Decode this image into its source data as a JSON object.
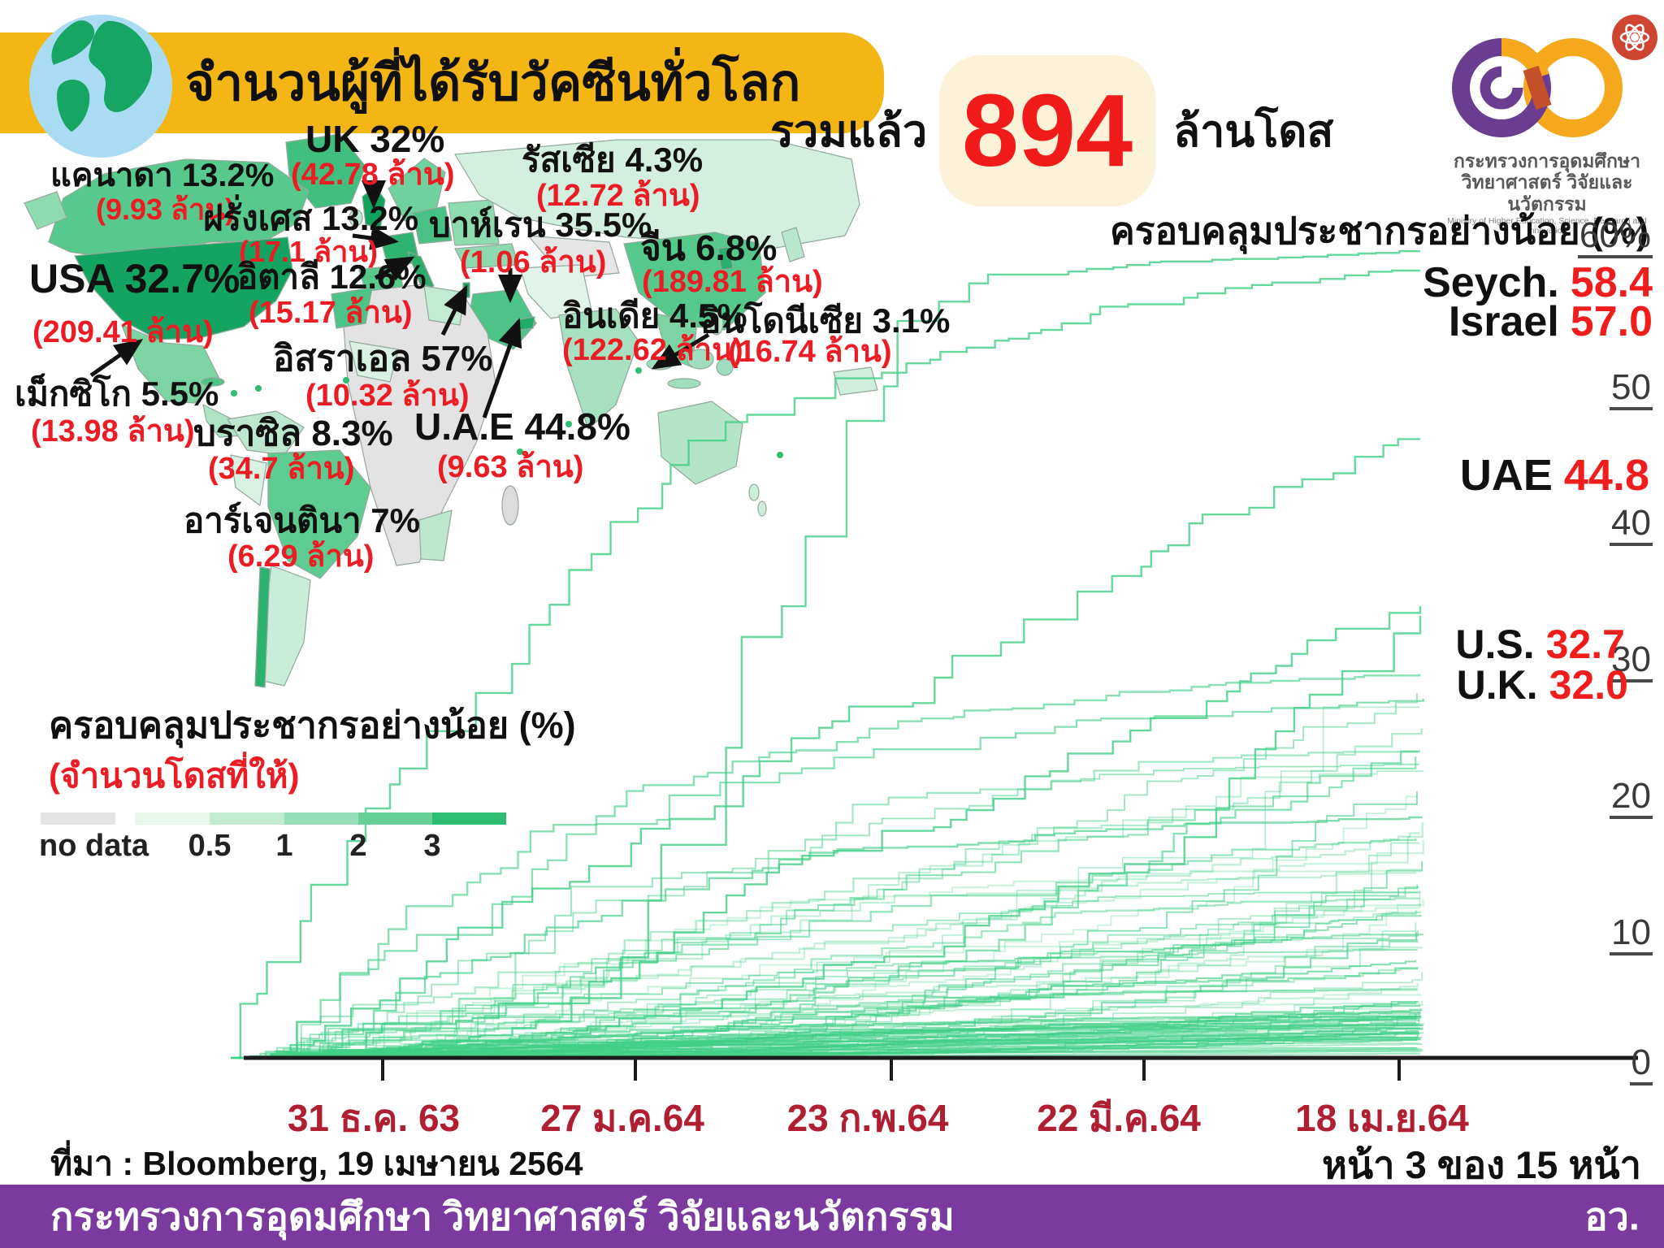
{
  "header": {
    "title": "จำนวนผู้ที่ได้รับวัคซีนทั่วโลก",
    "total_prefix": "รวมแล้ว",
    "total_value": "894",
    "total_unit": "ล้านโดส"
  },
  "logo": {
    "thai_line1": "กระทรวงการอุดมศึกษา",
    "thai_line2": "วิทยาศาสตร์ วิจัยและนวัตกรรม",
    "eng_line": "Ministry of Higher Education, Science, Research and Innovation"
  },
  "map_labels": [
    {
      "country": "แคนาดา",
      "pct": "13.2%",
      "doses": "(9.93 ล้าน)"
    },
    {
      "country": "UK",
      "pct": "32%",
      "doses": "(42.78 ล้าน)"
    },
    {
      "country": "รัสเซีย",
      "pct": "4.3%",
      "doses": "(12.72 ล้าน)"
    },
    {
      "country": "ฝรั่งเศส",
      "pct": "13.2%",
      "doses": "(17.1 ล้าน)"
    },
    {
      "country": "USA",
      "pct": "32.7%",
      "doses": "(209.41 ล้าน)"
    },
    {
      "country": "อิตาลี",
      "pct": "12.6%",
      "doses": "(15.17 ล้าน)"
    },
    {
      "country": "บาห์เรน",
      "pct": "35.5%",
      "doses": "(1.06 ล้าน)"
    },
    {
      "country": "จีน",
      "pct": "6.8%",
      "doses": "(189.81 ล้าน)"
    },
    {
      "country": "อินเดีย",
      "pct": "4.5%",
      "doses": "(122.62 ล้าน)"
    },
    {
      "country": "อินโดนีเซีย",
      "pct": "3.1%",
      "doses": "(16.74 ล้าน)"
    },
    {
      "country": "เม็กซิโก",
      "pct": "5.5%",
      "doses": "(13.98 ล้าน)"
    },
    {
      "country": "อิสราเอล",
      "pct": "57%",
      "doses": "(10.32 ล้าน)"
    },
    {
      "country": "U.A.E",
      "pct": "44.8%",
      "doses": "(9.63 ล้าน)"
    },
    {
      "country": "บราซิล",
      "pct": "8.3%",
      "doses": "(34.7 ล้าน)"
    },
    {
      "country": "อาร์เจนตินา",
      "pct": "7%",
      "doses": "(6.29 ล้าน)"
    }
  ],
  "map_legend": {
    "title": "ครอบคลุมประชากรอย่างน้อย (%)",
    "subtitle": "(จำนวนโดสที่ให้)",
    "no_data_label": "no data",
    "tick_labels": [
      "0.5",
      "1",
      "2",
      "3"
    ],
    "bin_colors": [
      "#E4E4E4",
      "#E8F6EC",
      "#C2EBD1",
      "#97DFB6",
      "#66D096",
      "#2DBE71"
    ]
  },
  "chart": {
    "header": "ครอบคลุมประชากรอย่างน้อย (%)",
    "y_tick_labels": [
      "60%",
      "50",
      "40",
      "30",
      "20",
      "10",
      "0"
    ],
    "x_tick_labels": [
      "31 ธ.ค. 63",
      "27 ม.ค.64",
      "23 ก.พ.64",
      "22 มี.ค.64",
      "18 เม.ย.64"
    ],
    "annotations": [
      {
        "name": "Seych.",
        "value": "58.4"
      },
      {
        "name": "Israel",
        "value": "57.0"
      },
      {
        "name": "UAE",
        "value": "44.8"
      },
      {
        "name": "U.S.",
        "value": "32.7"
      },
      {
        "name": "U.K.",
        "value": "32.0"
      }
    ]
  },
  "footer": {
    "source": "ที่มา : Bloomberg, 19 เมษายน 2564",
    "page": "หน้า 3 ของ 15 หน้า",
    "ministry": "กระทรวงการอุดมศึกษา วิทยาศาสตร์ วิจัยและนวัตกรรม",
    "ministry_abbr": "อว."
  },
  "colors": {
    "banner_yellow": "#F3B615",
    "cream_box": "#FBF2D7",
    "doses_red": "#EC1C24",
    "big_number_red": "#F21B1B",
    "date_axis_red": "#AF1E31",
    "line_green": "#3FCF85",
    "footer_purple": "#7B3A9E",
    "map_dark_green": "#14A462",
    "map_no_data_gray": "#E3E3E3"
  },
  "chart_data": [
    {
      "type": "heatmap",
      "subtype": "world-choropleth",
      "title": "จำนวนผู้ที่ได้รับวัคซีนทั่วโลก",
      "total": {
        "label": "รวมแล้ว",
        "value": 894,
        "unit": "ล้านโดส"
      },
      "legend": {
        "title": "ครอบคลุมประชากรอย่างน้อย (%)",
        "subtitle": "(จำนวนโดสที่ให้)",
        "bins": [
          "no data",
          "<0.5",
          "0.5-1",
          "1-2",
          "2-3",
          ">3"
        ]
      },
      "countries": [
        {
          "name": "แคนาดา",
          "coverage_pct": 13.2,
          "doses_million": 9.93
        },
        {
          "name": "UK",
          "coverage_pct": 32,
          "doses_million": 42.78
        },
        {
          "name": "รัสเซีย",
          "coverage_pct": 4.3,
          "doses_million": 12.72
        },
        {
          "name": "ฝรั่งเศส",
          "coverage_pct": 13.2,
          "doses_million": 17.1
        },
        {
          "name": "USA",
          "coverage_pct": 32.7,
          "doses_million": 209.41
        },
        {
          "name": "อิตาลี",
          "coverage_pct": 12.6,
          "doses_million": 15.17
        },
        {
          "name": "บาห์เรน",
          "coverage_pct": 35.5,
          "doses_million": 1.06
        },
        {
          "name": "จีน",
          "coverage_pct": 6.8,
          "doses_million": 189.81
        },
        {
          "name": "อินเดีย",
          "coverage_pct": 4.5,
          "doses_million": 122.62
        },
        {
          "name": "อินโดนีเซีย",
          "coverage_pct": 3.1,
          "doses_million": 16.74
        },
        {
          "name": "เม็กซิโก",
          "coverage_pct": 5.5,
          "doses_million": 13.98
        },
        {
          "name": "อิสราเอล",
          "coverage_pct": 57,
          "doses_million": 10.32
        },
        {
          "name": "U.A.E",
          "coverage_pct": 44.8,
          "doses_million": 9.63
        },
        {
          "name": "บราซิล",
          "coverage_pct": 8.3,
          "doses_million": 34.7
        },
        {
          "name": "อาร์เจนตินา",
          "coverage_pct": 7,
          "doses_million": 6.29
        }
      ]
    },
    {
      "type": "line",
      "subtype": "step-after-multiseries",
      "title": "ครอบคลุมประชากรอย่างน้อย (%)",
      "xlabel": "",
      "ylabel": "ครอบคลุมประชากรอย่างน้อย (%)",
      "ylim": [
        0,
        60
      ],
      "grid": false,
      "legend_position": "right-annotations",
      "x_ticks": [
        "31 ธ.ค. 63",
        "27 ม.ค.64",
        "23 ก.พ.64",
        "22 มี.ค.64",
        "18 เม.ย.64"
      ],
      "y_ticks": [
        60,
        50,
        40,
        30,
        20,
        10,
        0
      ],
      "series": [
        {
          "name": "Seych.",
          "end_value": 58.4,
          "shape": "late-steep-then-plateau"
        },
        {
          "name": "Israel",
          "end_value": 57.0,
          "shape": "fast-early-then-plateau"
        },
        {
          "name": "UAE",
          "end_value": 44.8,
          "shape": "steady"
        },
        {
          "name": "U.S.",
          "end_value": 32.7,
          "shape": "steady"
        },
        {
          "name": "U.K.",
          "end_value": 32.0,
          "shape": "steady"
        }
      ],
      "background_series_note": "~100 unlabeled country step-lines rising from 0, ending between 0.3 and 28, dense mass below 13",
      "source": "ที่มา : Bloomberg, 19 เมษายน 2564"
    }
  ]
}
